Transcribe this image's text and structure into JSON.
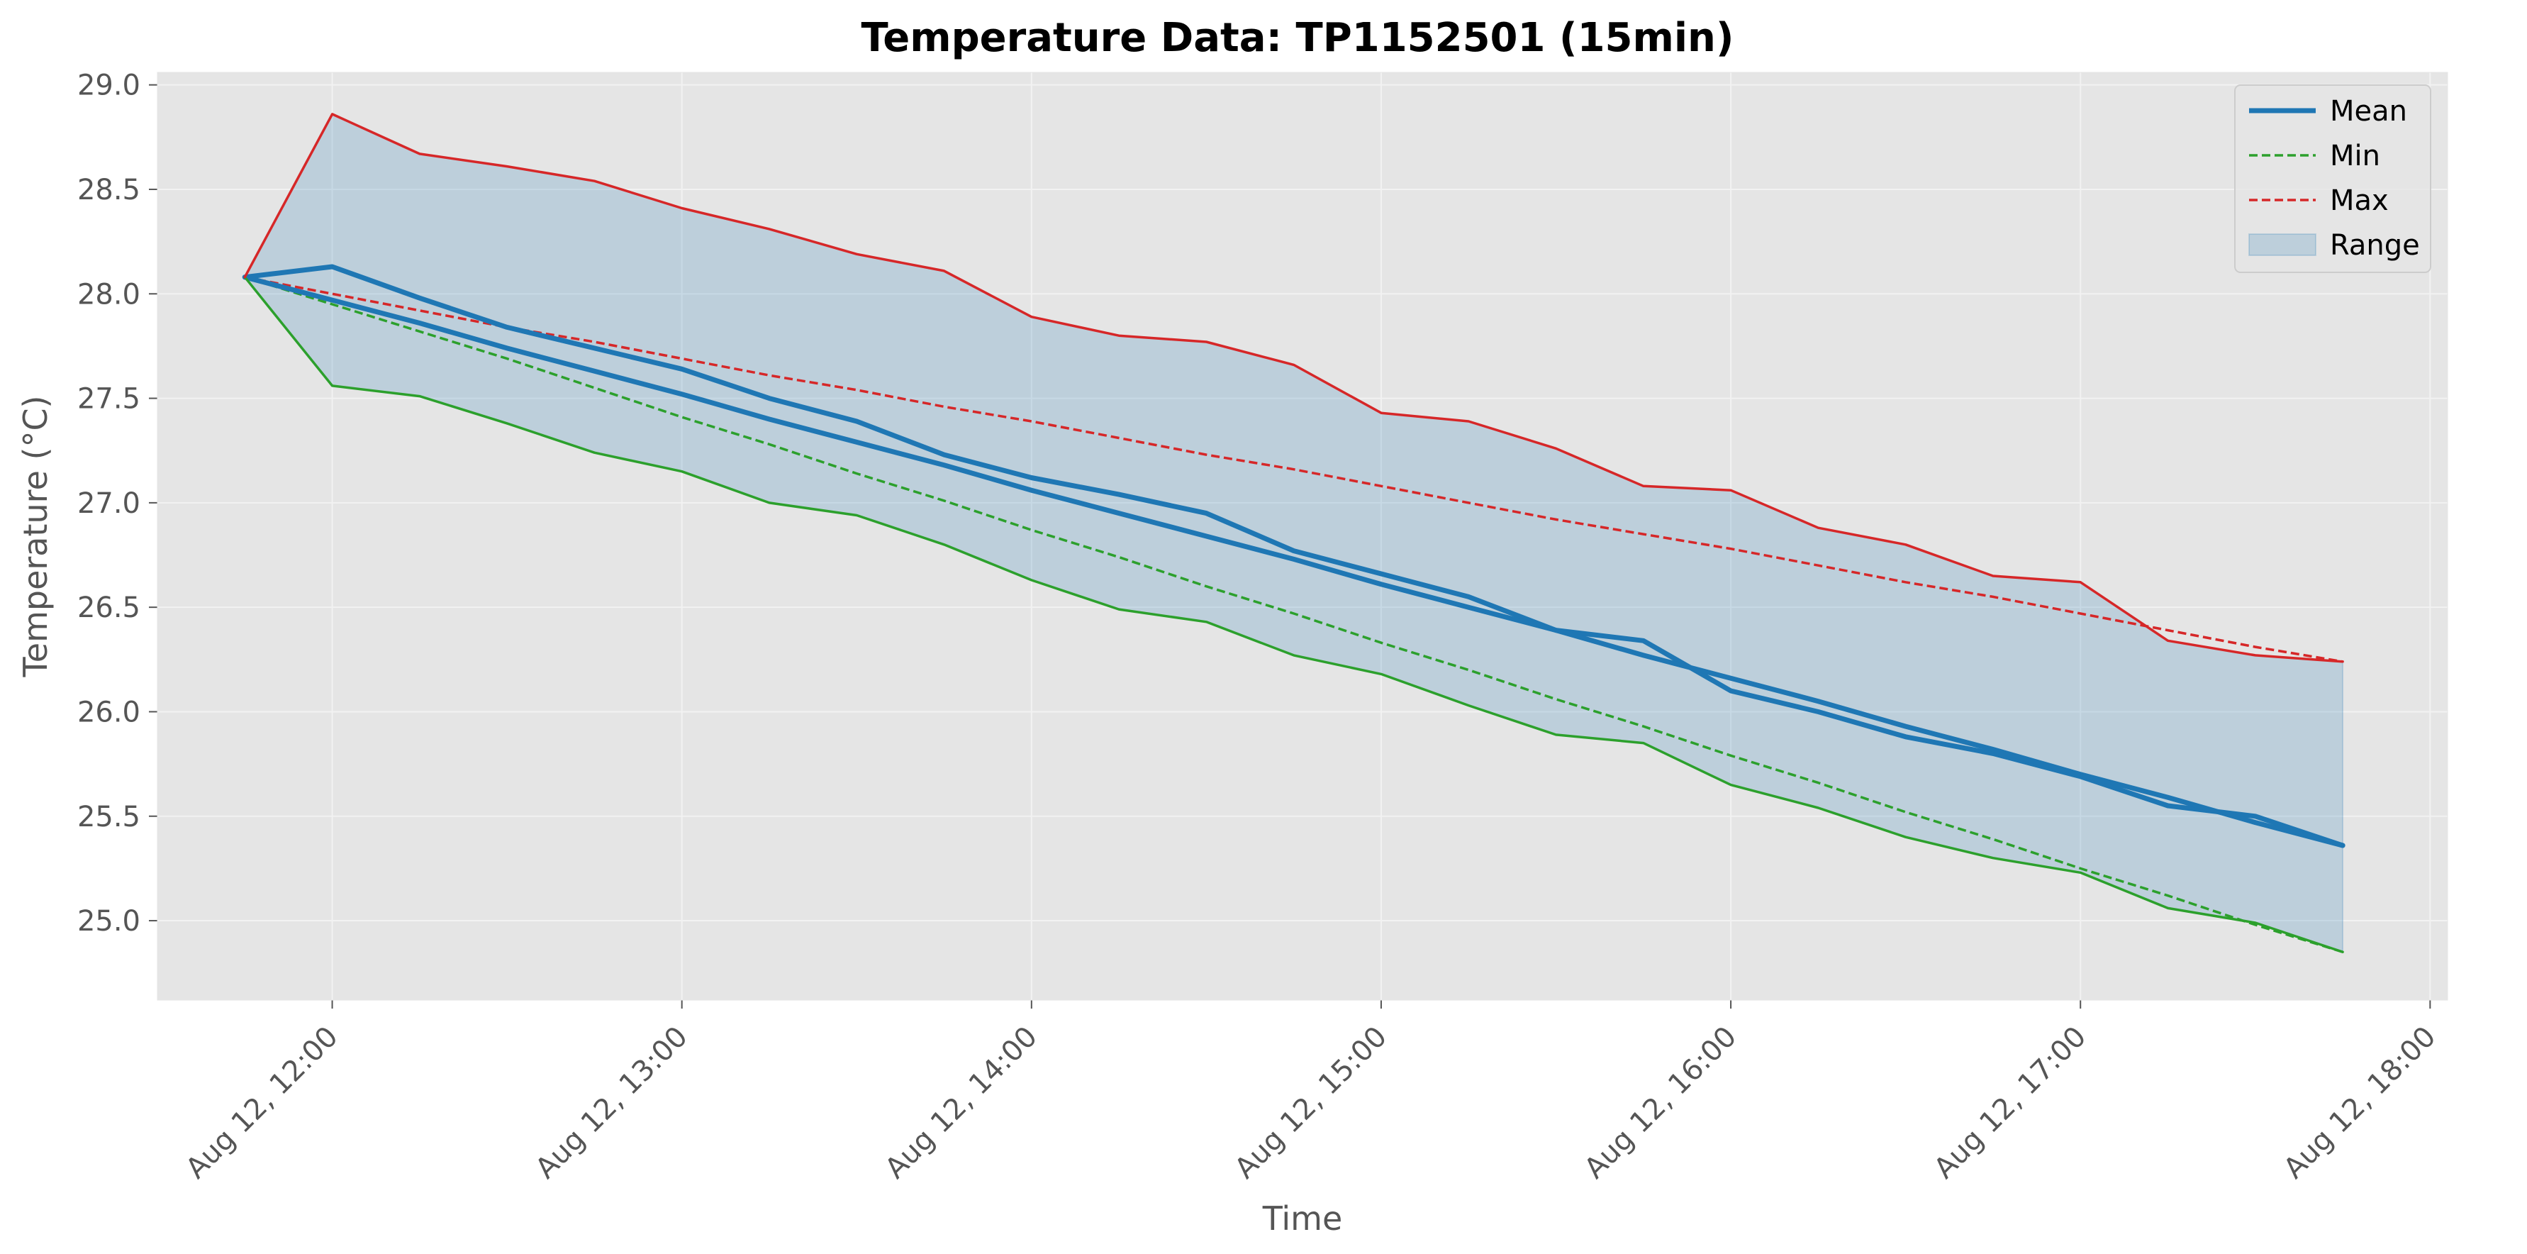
{
  "chart_data": {
    "type": "line",
    "title": "Temperature Data: TP1152501 (15min)",
    "xlabel": "Time",
    "ylabel": "Temperature (°C)",
    "x": [
      "11:45",
      "12:00",
      "12:15",
      "12:30",
      "12:45",
      "13:00",
      "13:15",
      "13:30",
      "13:45",
      "14:00",
      "14:15",
      "14:30",
      "14:45",
      "15:00",
      "15:15",
      "15:30",
      "15:45",
      "16:00",
      "16:15",
      "16:30",
      "16:45",
      "17:00",
      "17:15",
      "17:30",
      "17:45"
    ],
    "xlim": [
      "11:30",
      "18:03"
    ],
    "x_ticks": [
      "12:00",
      "13:00",
      "14:00",
      "15:00",
      "16:00",
      "17:00",
      "18:00"
    ],
    "x_tick_labels": [
      "Aug 12, 12:00",
      "Aug 12, 13:00",
      "Aug 12, 14:00",
      "Aug 12, 15:00",
      "Aug 12, 16:00",
      "Aug 12, 17:00",
      "Aug 12, 18:00"
    ],
    "ylim": [
      24.62,
      29.06
    ],
    "y_ticks": [
      25.0,
      25.5,
      26.0,
      26.5,
      27.0,
      27.5,
      28.0,
      28.5,
      29.0
    ],
    "y_tick_labels": [
      "25.0",
      "25.5",
      "26.0",
      "26.5",
      "27.0",
      "27.5",
      "28.0",
      "28.5",
      "29.0"
    ],
    "grid": true,
    "legend": "top-right",
    "series": [
      {
        "name": "Mean",
        "style": "solid",
        "color": "#1f77b4",
        "values": [
          28.08,
          28.13,
          27.98,
          27.84,
          27.74,
          27.64,
          27.5,
          27.39,
          27.23,
          27.12,
          27.04,
          26.95,
          26.77,
          26.66,
          26.55,
          26.39,
          26.34,
          26.1,
          26.0,
          25.88,
          25.8,
          25.69,
          25.55,
          25.5,
          25.36
        ]
      },
      {
        "name": "Mean",
        "style": "solid",
        "color": "#1f77b4",
        "values": [
          28.08,
          27.97,
          27.86,
          27.74,
          27.63,
          27.52,
          27.4,
          27.29,
          27.18,
          27.06,
          26.95,
          26.84,
          26.73,
          26.61,
          26.5,
          26.39,
          26.27,
          26.16,
          26.05,
          25.93,
          25.82,
          25.7,
          25.59,
          25.47,
          25.36
        ]
      },
      {
        "name": "Min",
        "style": "solid",
        "color": "#2ca02c",
        "values": [
          28.08,
          27.56,
          27.51,
          27.38,
          27.24,
          27.15,
          27.0,
          26.94,
          26.8,
          26.63,
          26.49,
          26.43,
          26.27,
          26.18,
          26.03,
          25.89,
          25.85,
          25.65,
          25.54,
          25.4,
          25.3,
          25.23,
          25.06,
          24.99,
          24.85
        ]
      },
      {
        "name": "Min",
        "style": "dashed",
        "color": "#2ca02c",
        "values": [
          28.08,
          27.95,
          27.82,
          27.69,
          27.55,
          27.41,
          27.28,
          27.14,
          27.01,
          26.87,
          26.74,
          26.6,
          26.47,
          26.33,
          26.2,
          26.06,
          25.93,
          25.79,
          25.66,
          25.52,
          25.39,
          25.25,
          25.12,
          24.98,
          24.85
        ]
      },
      {
        "name": "Max",
        "style": "solid",
        "color": "#d62728",
        "values": [
          28.08,
          28.86,
          28.67,
          28.61,
          28.54,
          28.41,
          28.31,
          28.19,
          28.11,
          27.89,
          27.8,
          27.77,
          27.66,
          27.43,
          27.39,
          27.26,
          27.08,
          27.06,
          26.88,
          26.8,
          26.65,
          26.62,
          26.34,
          26.27,
          26.24
        ]
      },
      {
        "name": "Max",
        "style": "dashed",
        "color": "#d62728",
        "values": [
          28.08,
          28.0,
          27.92,
          27.84,
          27.77,
          27.69,
          27.61,
          27.54,
          27.46,
          27.39,
          27.31,
          27.23,
          27.16,
          27.08,
          27.0,
          26.92,
          26.85,
          26.78,
          26.7,
          26.62,
          26.55,
          26.47,
          26.39,
          26.31,
          26.24
        ]
      }
    ],
    "range_band": {
      "name": "Range",
      "color": "#1f77b4",
      "lower_series": "Min",
      "upper_series": "Max"
    },
    "legend_entries": [
      {
        "label": "Mean",
        "style": "solid-thick",
        "color": "#1f77b4"
      },
      {
        "label": "Min",
        "style": "dashed",
        "color": "#2ca02c"
      },
      {
        "label": "Max",
        "style": "dashed",
        "color": "#d62728"
      },
      {
        "label": "Range",
        "style": "patch",
        "color": "#1f77b4"
      }
    ],
    "colors": {
      "plot_background": "#e5e5e5",
      "grid": "#f2f2f2",
      "tick": "#555555"
    }
  }
}
